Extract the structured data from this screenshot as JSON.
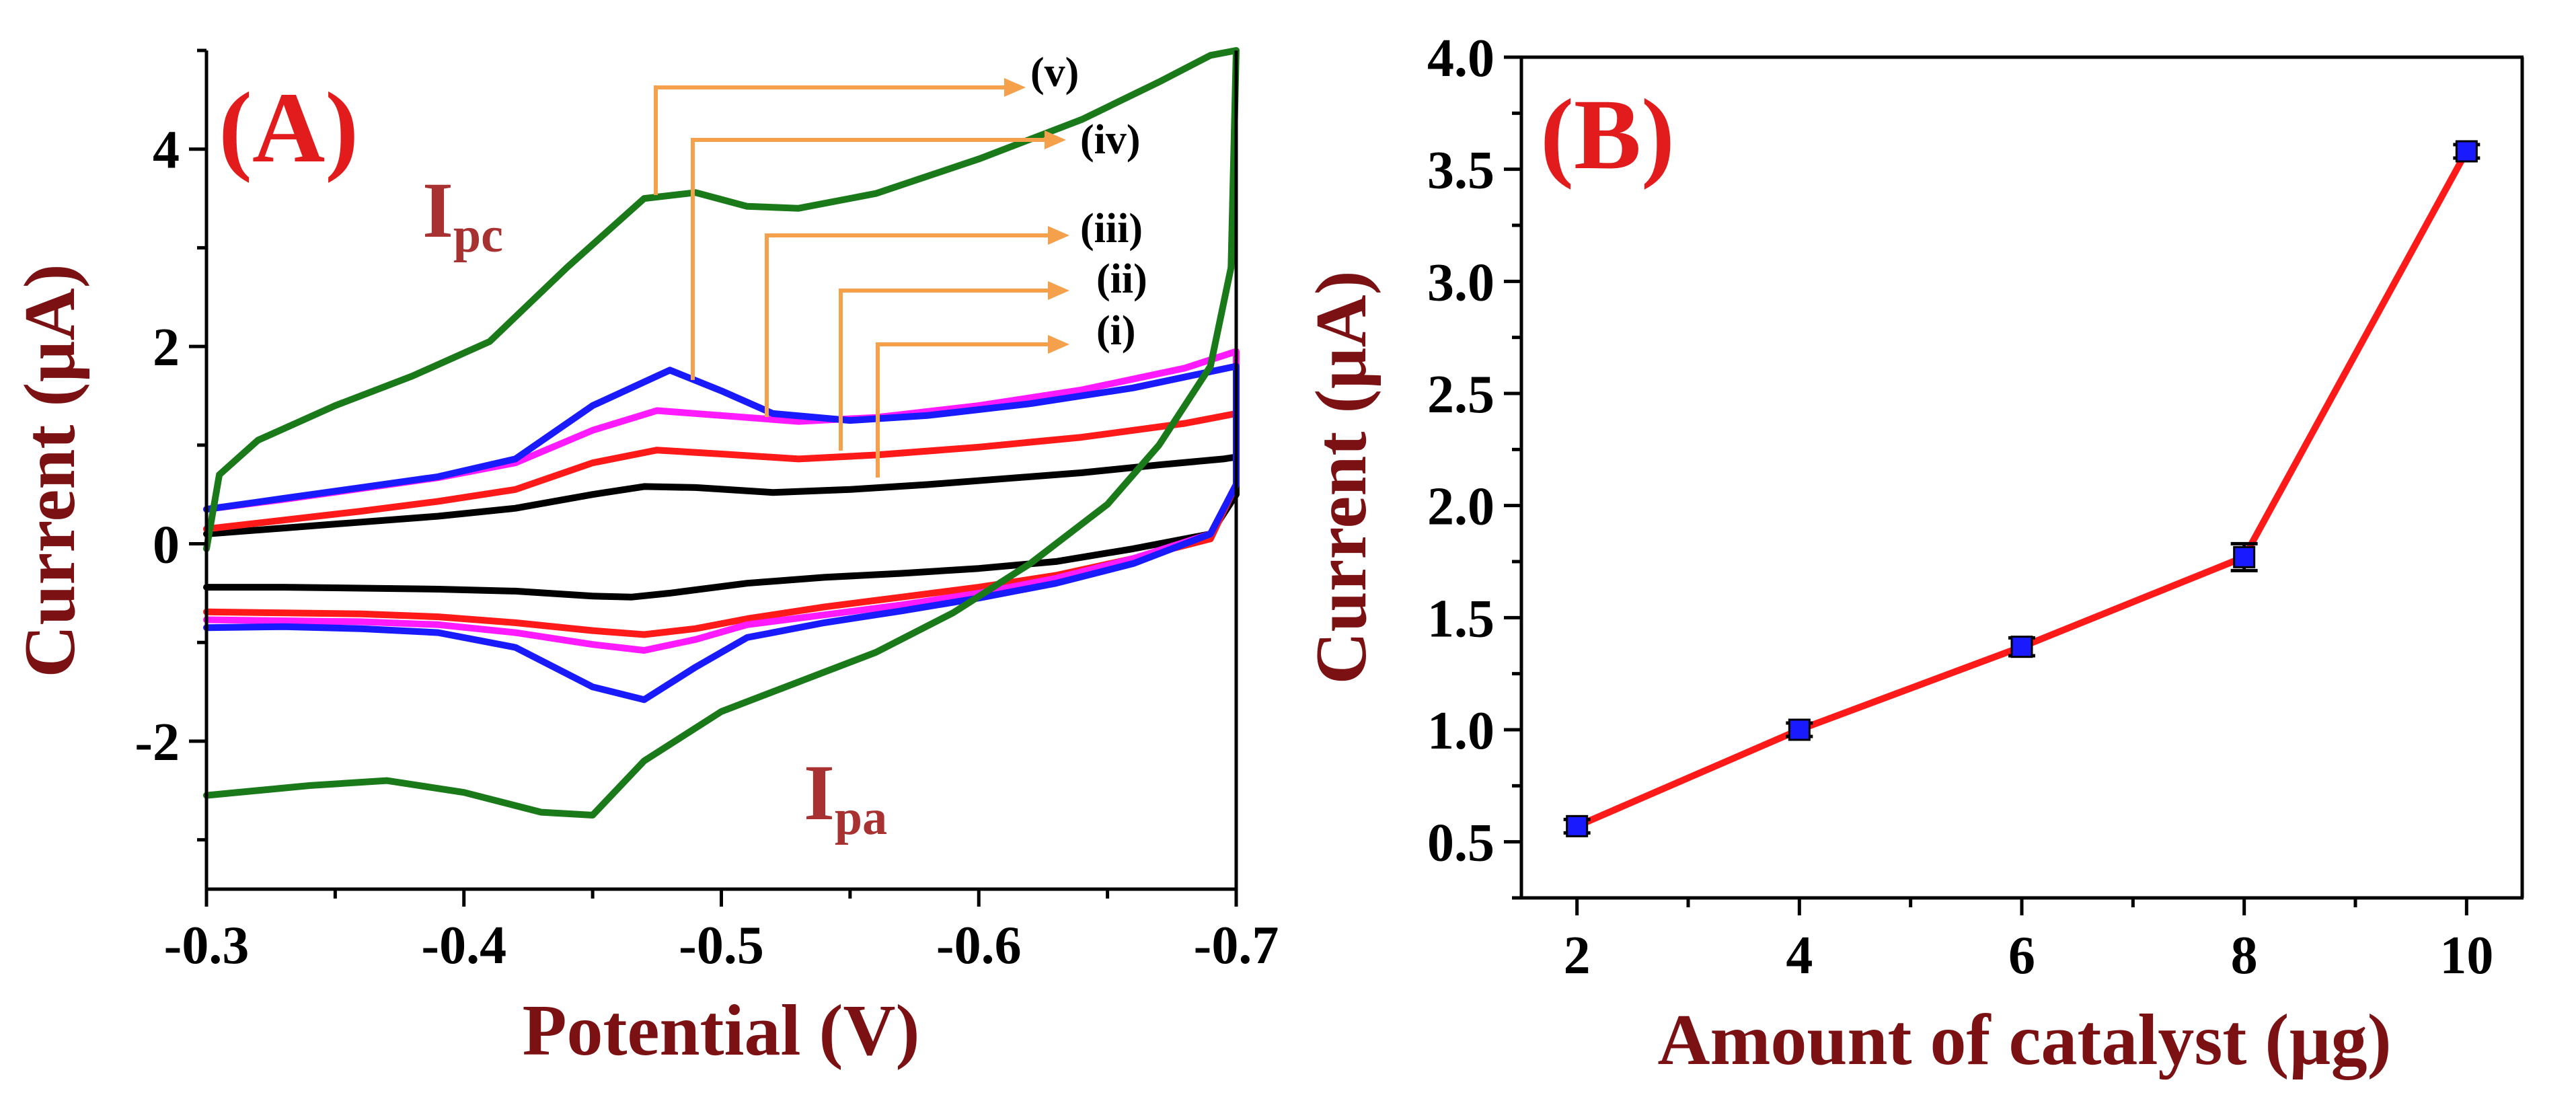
{
  "chart_data": [
    {
      "panel": "(A)",
      "type": "line",
      "xlabel": "Potential (V)",
      "ylabel": "Current (µA)",
      "xlim": [
        -0.3,
        -0.7
      ],
      "ylim": [
        -3.5,
        5.0
      ],
      "xticks": [
        -0.3,
        -0.4,
        -0.5,
        -0.6,
        -0.7
      ],
      "xtick_labels": [
        "-0.3",
        "-0.4",
        "-0.5",
        "-0.6",
        "-0.7"
      ],
      "yticks": [
        -2,
        0,
        2,
        4
      ],
      "ytick_labels": [
        "-2",
        "0",
        "2",
        "4"
      ],
      "annotations": {
        "cathodic_peak": "I",
        "cathodic_sub": "pc",
        "anodic_peak": "I",
        "anodic_sub": "pa"
      },
      "series": [
        {
          "name": "(i)",
          "color": "#000000",
          "peak_x": -0.56,
          "peak_y": 0.65,
          "forward": [
            [
              -0.3,
              0.1
            ],
            [
              -0.33,
              0.16
            ],
            [
              -0.36,
              0.22
            ],
            [
              -0.39,
              0.28
            ],
            [
              -0.42,
              0.36
            ],
            [
              -0.45,
              0.5
            ],
            [
              -0.47,
              0.58
            ],
            [
              -0.49,
              0.57
            ],
            [
              -0.52,
              0.52
            ],
            [
              -0.55,
              0.55
            ],
            [
              -0.58,
              0.6
            ],
            [
              -0.61,
              0.66
            ],
            [
              -0.64,
              0.72
            ],
            [
              -0.67,
              0.8
            ],
            [
              -0.695,
              0.86
            ],
            [
              -0.7,
              0.88
            ],
            [
              -0.7,
              0.55
            ]
          ],
          "reverse": [
            [
              -0.7,
              0.5
            ],
            [
              -0.69,
              0.1
            ],
            [
              -0.66,
              -0.05
            ],
            [
              -0.63,
              -0.18
            ],
            [
              -0.6,
              -0.25
            ],
            [
              -0.57,
              -0.3
            ],
            [
              -0.54,
              -0.34
            ],
            [
              -0.51,
              -0.4
            ],
            [
              -0.48,
              -0.5
            ],
            [
              -0.465,
              -0.54
            ],
            [
              -0.45,
              -0.53
            ],
            [
              -0.42,
              -0.48
            ],
            [
              -0.39,
              -0.46
            ],
            [
              -0.36,
              -0.45
            ],
            [
              -0.33,
              -0.44
            ],
            [
              -0.3,
              -0.44
            ]
          ]
        },
        {
          "name": "(ii)",
          "color": "#ff1a1a",
          "peak_x": -0.545,
          "peak_y": 0.9,
          "forward": [
            [
              -0.3,
              0.15
            ],
            [
              -0.33,
              0.24
            ],
            [
              -0.36,
              0.33
            ],
            [
              -0.39,
              0.43
            ],
            [
              -0.42,
              0.55
            ],
            [
              -0.45,
              0.82
            ],
            [
              -0.475,
              0.95
            ],
            [
              -0.5,
              0.91
            ],
            [
              -0.53,
              0.86
            ],
            [
              -0.56,
              0.9
            ],
            [
              -0.6,
              0.98
            ],
            [
              -0.64,
              1.08
            ],
            [
              -0.68,
              1.22
            ],
            [
              -0.7,
              1.32
            ],
            [
              -0.7,
              0.7
            ]
          ],
          "reverse": [
            [
              -0.7,
              0.6
            ],
            [
              -0.69,
              0.05
            ],
            [
              -0.66,
              -0.15
            ],
            [
              -0.63,
              -0.32
            ],
            [
              -0.6,
              -0.44
            ],
            [
              -0.57,
              -0.54
            ],
            [
              -0.54,
              -0.64
            ],
            [
              -0.51,
              -0.76
            ],
            [
              -0.49,
              -0.86
            ],
            [
              -0.47,
              -0.92
            ],
            [
              -0.45,
              -0.88
            ],
            [
              -0.42,
              -0.8
            ],
            [
              -0.39,
              -0.74
            ],
            [
              -0.36,
              -0.71
            ],
            [
              -0.33,
              -0.7
            ],
            [
              -0.3,
              -0.69
            ]
          ]
        },
        {
          "name": "(iii)",
          "color": "#ff1aff",
          "peak_x": -0.515,
          "peak_y": 1.25,
          "forward": [
            [
              -0.3,
              0.35
            ],
            [
              -0.33,
              0.45
            ],
            [
              -0.36,
              0.56
            ],
            [
              -0.39,
              0.67
            ],
            [
              -0.42,
              0.82
            ],
            [
              -0.45,
              1.15
            ],
            [
              -0.475,
              1.35
            ],
            [
              -0.5,
              1.3
            ],
            [
              -0.53,
              1.24
            ],
            [
              -0.56,
              1.28
            ],
            [
              -0.6,
              1.4
            ],
            [
              -0.64,
              1.56
            ],
            [
              -0.68,
              1.78
            ],
            [
              -0.7,
              1.95
            ],
            [
              -0.7,
              0.9
            ]
          ],
          "reverse": [
            [
              -0.7,
              0.6
            ],
            [
              -0.69,
              0.1
            ],
            [
              -0.66,
              -0.15
            ],
            [
              -0.63,
              -0.35
            ],
            [
              -0.6,
              -0.5
            ],
            [
              -0.57,
              -0.62
            ],
            [
              -0.54,
              -0.72
            ],
            [
              -0.51,
              -0.82
            ],
            [
              -0.49,
              -0.97
            ],
            [
              -0.47,
              -1.08
            ],
            [
              -0.45,
              -1.02
            ],
            [
              -0.42,
              -0.9
            ],
            [
              -0.39,
              -0.82
            ],
            [
              -0.36,
              -0.79
            ],
            [
              -0.33,
              -0.78
            ],
            [
              -0.3,
              -0.77
            ]
          ]
        },
        {
          "name": "(iv)",
          "color": "#1a1aff",
          "peak_x": -0.49,
          "peak_y": 1.6,
          "forward": [
            [
              -0.3,
              0.35
            ],
            [
              -0.33,
              0.46
            ],
            [
              -0.36,
              0.57
            ],
            [
              -0.39,
              0.68
            ],
            [
              -0.42,
              0.86
            ],
            [
              -0.45,
              1.4
            ],
            [
              -0.48,
              1.76
            ],
            [
              -0.5,
              1.55
            ],
            [
              -0.52,
              1.32
            ],
            [
              -0.55,
              1.25
            ],
            [
              -0.58,
              1.3
            ],
            [
              -0.62,
              1.42
            ],
            [
              -0.66,
              1.58
            ],
            [
              -0.7,
              1.8
            ],
            [
              -0.7,
              0.95
            ]
          ],
          "reverse": [
            [
              -0.7,
              0.6
            ],
            [
              -0.69,
              0.1
            ],
            [
              -0.66,
              -0.2
            ],
            [
              -0.63,
              -0.4
            ],
            [
              -0.6,
              -0.55
            ],
            [
              -0.57,
              -0.68
            ],
            [
              -0.54,
              -0.8
            ],
            [
              -0.51,
              -0.95
            ],
            [
              -0.49,
              -1.25
            ],
            [
              -0.47,
              -1.58
            ],
            [
              -0.45,
              -1.45
            ],
            [
              -0.42,
              -1.05
            ],
            [
              -0.39,
              -0.9
            ],
            [
              -0.36,
              -0.86
            ],
            [
              -0.33,
              -0.84
            ],
            [
              -0.3,
              -0.85
            ]
          ]
        },
        {
          "name": "(v)",
          "color": "#1a7a1a",
          "peak_x": -0.475,
          "peak_y": 3.5,
          "forward": [
            [
              -0.3,
              -0.05
            ],
            [
              -0.305,
              0.7
            ],
            [
              -0.32,
              1.05
            ],
            [
              -0.35,
              1.4
            ],
            [
              -0.38,
              1.7
            ],
            [
              -0.41,
              2.05
            ],
            [
              -0.44,
              2.8
            ],
            [
              -0.47,
              3.5
            ],
            [
              -0.49,
              3.56
            ],
            [
              -0.51,
              3.42
            ],
            [
              -0.53,
              3.4
            ],
            [
              -0.56,
              3.55
            ],
            [
              -0.6,
              3.9
            ],
            [
              -0.64,
              4.3
            ],
            [
              -0.67,
              4.68
            ],
            [
              -0.69,
              4.95
            ],
            [
              -0.7,
              5.0
            ]
          ],
          "reverse": [
            [
              -0.7,
              5.0
            ],
            [
              -0.698,
              2.8
            ],
            [
              -0.69,
              1.8
            ],
            [
              -0.67,
              1.0
            ],
            [
              -0.65,
              0.4
            ],
            [
              -0.62,
              -0.2
            ],
            [
              -0.59,
              -0.7
            ],
            [
              -0.56,
              -1.1
            ],
            [
              -0.53,
              -1.4
            ],
            [
              -0.5,
              -1.7
            ],
            [
              -0.47,
              -2.2
            ],
            [
              -0.45,
              -2.75
            ],
            [
              -0.43,
              -2.72
            ],
            [
              -0.4,
              -2.52
            ],
            [
              -0.37,
              -2.4
            ],
            [
              -0.34,
              -2.45
            ],
            [
              -0.3,
              -2.55
            ]
          ]
        }
      ]
    },
    {
      "panel": "(B)",
      "type": "line",
      "xlabel": "Amount of catalyst (µg)",
      "ylabel": "Current (µA)",
      "xlim": [
        1.5,
        10.5
      ],
      "ylim": [
        0.25,
        4.0
      ],
      "xticks": [
        2,
        4,
        6,
        8,
        10
      ],
      "xtick_labels": [
        "2",
        "4",
        "6",
        "8",
        "10"
      ],
      "yticks": [
        0.5,
        1.0,
        1.5,
        2.0,
        2.5,
        3.0,
        3.5,
        4.0
      ],
      "ytick_labels": [
        "0.5",
        "1.0",
        "1.5",
        "2.0",
        "2.5",
        "3.0",
        "3.5",
        "4.0"
      ],
      "series": [
        {
          "name": "Current",
          "line_color": "#ff1a1a",
          "marker_color": "#1a1aff",
          "x": [
            2,
            4,
            6,
            8,
            10
          ],
          "y": [
            0.57,
            1.0,
            1.37,
            1.77,
            3.58
          ],
          "error": [
            0.03,
            0.03,
            0.04,
            0.06,
            0.03
          ]
        }
      ]
    }
  ]
}
